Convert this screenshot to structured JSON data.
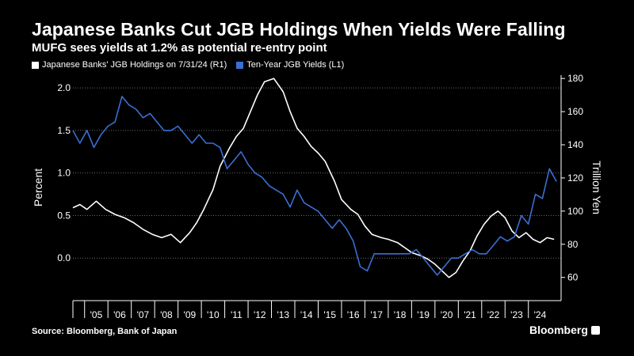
{
  "chart_data": {
    "type": "line",
    "title": "Japanese Banks Cut JGB Holdings When Yields Were Falling",
    "subtitle": "MUFG sees yields at 1.2% as potential re-entry point",
    "left_axis": {
      "label": "Percent",
      "ticks": [
        "0.0",
        "0.5",
        "1.0",
        "1.5",
        "2.0"
      ],
      "range": [
        -0.5,
        2.15
      ]
    },
    "right_axis": {
      "label": "Trillion Yen",
      "ticks": [
        "60",
        "80",
        "100",
        "120",
        "140",
        "160",
        "180"
      ],
      "range": [
        46,
        182
      ]
    },
    "x_axis": {
      "ticks": [
        "'05",
        "'06",
        "'07",
        "'08",
        "'09",
        "'10",
        "'11",
        "'12",
        "'13",
        "'14",
        "'15",
        "'16",
        "'17",
        "'18",
        "'19",
        "'20",
        "'21",
        "'22",
        "'23",
        "'24"
      ],
      "range": [
        2004.0,
        2024.9
      ]
    },
    "grid": true,
    "legend_position": "top-left",
    "series": [
      {
        "name": "Japanese Banks' JGB Holdings on 7/31/24 (R1)",
        "axis": "right",
        "color": "#ffffff",
        "x": [
          2004.0,
          2004.3,
          2004.6,
          2005.0,
          2005.4,
          2005.8,
          2006.2,
          2006.6,
          2007.0,
          2007.4,
          2007.8,
          2008.2,
          2008.6,
          2009.0,
          2009.3,
          2009.6,
          2010.0,
          2010.3,
          2010.7,
          2011.0,
          2011.3,
          2011.6,
          2011.9,
          2012.2,
          2012.6,
          2013.0,
          2013.3,
          2013.6,
          2013.9,
          2014.2,
          2014.5,
          2014.8,
          2015.2,
          2015.5,
          2015.9,
          2016.2,
          2016.5,
          2016.8,
          2017.2,
          2017.5,
          2017.9,
          2018.2,
          2018.5,
          2018.9,
          2019.2,
          2019.5,
          2019.8,
          2020.1,
          2020.4,
          2020.7,
          2021.0,
          2021.3,
          2021.6,
          2021.9,
          2022.2,
          2022.5,
          2022.8,
          2023.1,
          2023.4,
          2023.7,
          2024.0,
          2024.3,
          2024.6
        ],
        "values": [
          102,
          104,
          101,
          106,
          101,
          98,
          96,
          93,
          89,
          86,
          84,
          86,
          81,
          87,
          93,
          101,
          113,
          127,
          138,
          145,
          150,
          160,
          170,
          178,
          180,
          172,
          160,
          150,
          145,
          139,
          135,
          130,
          118,
          107,
          101,
          98,
          91,
          86,
          84,
          83,
          81,
          78,
          75,
          73,
          71,
          68,
          64,
          60,
          63,
          70,
          76,
          85,
          92,
          97,
          100,
          96,
          88,
          84,
          87,
          83,
          81,
          84,
          83
        ]
      },
      {
        "name": "Ten-Year JGB Yields (L1)",
        "axis": "left",
        "color": "#3b6fd4",
        "x": [
          2004.0,
          2004.3,
          2004.6,
          2004.9,
          2005.2,
          2005.5,
          2005.8,
          2006.1,
          2006.4,
          2006.7,
          2007.0,
          2007.3,
          2007.6,
          2007.9,
          2008.2,
          2008.5,
          2008.8,
          2009.1,
          2009.4,
          2009.7,
          2010.0,
          2010.3,
          2010.6,
          2010.9,
          2011.2,
          2011.5,
          2011.8,
          2012.1,
          2012.4,
          2012.7,
          2013.0,
          2013.3,
          2013.6,
          2013.9,
          2014.2,
          2014.5,
          2014.8,
          2015.1,
          2015.4,
          2015.7,
          2016.0,
          2016.3,
          2016.6,
          2016.9,
          2017.2,
          2017.5,
          2017.8,
          2018.1,
          2018.4,
          2018.7,
          2019.0,
          2019.3,
          2019.6,
          2019.9,
          2020.2,
          2020.5,
          2020.8,
          2021.1,
          2021.4,
          2021.7,
          2022.0,
          2022.3,
          2022.6,
          2022.9,
          2023.2,
          2023.5,
          2023.8,
          2024.1,
          2024.4,
          2024.7
        ],
        "values": [
          1.5,
          1.35,
          1.5,
          1.3,
          1.45,
          1.55,
          1.6,
          1.9,
          1.8,
          1.75,
          1.65,
          1.7,
          1.6,
          1.5,
          1.5,
          1.55,
          1.45,
          1.35,
          1.45,
          1.35,
          1.35,
          1.3,
          1.05,
          1.15,
          1.25,
          1.1,
          1.0,
          0.95,
          0.85,
          0.8,
          0.75,
          0.6,
          0.8,
          0.65,
          0.6,
          0.55,
          0.45,
          0.35,
          0.45,
          0.35,
          0.2,
          -0.1,
          -0.15,
          0.05,
          0.05,
          0.05,
          0.05,
          0.05,
          0.05,
          0.1,
          0.0,
          -0.1,
          -0.2,
          -0.1,
          0.0,
          0.0,
          0.05,
          0.1,
          0.05,
          0.05,
          0.15,
          0.25,
          0.2,
          0.25,
          0.5,
          0.4,
          0.75,
          0.7,
          1.05,
          0.9
        ]
      }
    ]
  },
  "footer": {
    "source": "Source: Bloomberg, Bank of Japan",
    "brand": "Bloomberg"
  }
}
